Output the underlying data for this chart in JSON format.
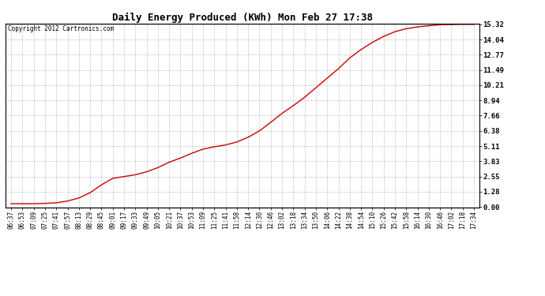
{
  "title": "Daily Energy Produced (KWh) Mon Feb 27 17:38",
  "copyright": "Copyright 2012 Cartronics.com",
  "line_color": "#cc0000",
  "background_color": "#ffffff",
  "plot_bg_color": "#ffffff",
  "grid_color": "#999999",
  "yticks": [
    0.0,
    1.28,
    2.55,
    3.83,
    5.11,
    6.38,
    7.66,
    8.94,
    10.21,
    11.49,
    12.77,
    14.04,
    15.32
  ],
  "ymax": 15.32,
  "ymin": 0.0,
  "xtick_labels": [
    "06:37",
    "06:53",
    "07:09",
    "07:25",
    "07:41",
    "07:57",
    "08:13",
    "08:29",
    "08:45",
    "09:01",
    "09:17",
    "09:33",
    "09:49",
    "10:05",
    "10:21",
    "10:37",
    "10:53",
    "11:09",
    "11:25",
    "11:41",
    "11:58",
    "12:14",
    "12:30",
    "12:46",
    "13:02",
    "13:18",
    "13:34",
    "13:50",
    "14:06",
    "14:22",
    "14:38",
    "14:54",
    "15:10",
    "15:26",
    "15:42",
    "15:58",
    "16:14",
    "16:30",
    "16:46",
    "17:02",
    "17:18",
    "17:34"
  ],
  "control_x": [
    0,
    1,
    2,
    3,
    4,
    5,
    6,
    7,
    8,
    9,
    10,
    11,
    12,
    13,
    14,
    15,
    16,
    17,
    18,
    19,
    20,
    21,
    22,
    23,
    24,
    25,
    26,
    27,
    28,
    29,
    30,
    31,
    32,
    33,
    34,
    35,
    36,
    37,
    38,
    39,
    40,
    41
  ],
  "control_y": [
    0.27,
    0.27,
    0.27,
    0.3,
    0.35,
    0.5,
    0.75,
    1.2,
    1.85,
    2.4,
    2.55,
    2.7,
    2.95,
    3.3,
    3.75,
    4.1,
    4.5,
    4.85,
    5.05,
    5.2,
    5.45,
    5.85,
    6.38,
    7.1,
    7.85,
    8.5,
    9.2,
    10.0,
    10.8,
    11.6,
    12.5,
    13.2,
    13.8,
    14.3,
    14.7,
    14.95,
    15.1,
    15.2,
    15.28,
    15.3,
    15.32,
    15.32
  ]
}
